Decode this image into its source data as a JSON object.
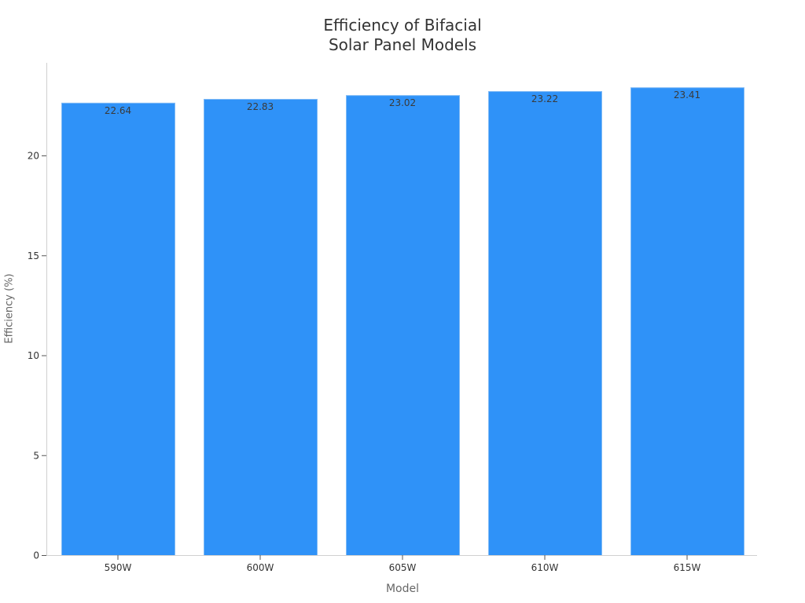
{
  "chart_data": {
    "type": "bar",
    "title": "Efficiency of Bifacial Solar Panel Models",
    "title_lines": [
      "Efficiency of Bifacial",
      "Solar Panel Models"
    ],
    "xlabel": "Model",
    "ylabel": "Efficiency (%)",
    "categories": [
      "590W",
      "600W",
      "605W",
      "610W",
      "615W"
    ],
    "values": [
      22.64,
      22.83,
      23.02,
      23.22,
      23.41
    ],
    "data_labels": [
      "22.64",
      "22.83",
      "23.02",
      "23.22",
      "23.41"
    ],
    "yticks": [
      0,
      5,
      10,
      15,
      20
    ],
    "ylim": [
      0,
      24.6
    ],
    "grid": false,
    "legend": null,
    "bar_color": "#2f92f8",
    "bar_edge_color": "#7fbaf5"
  }
}
